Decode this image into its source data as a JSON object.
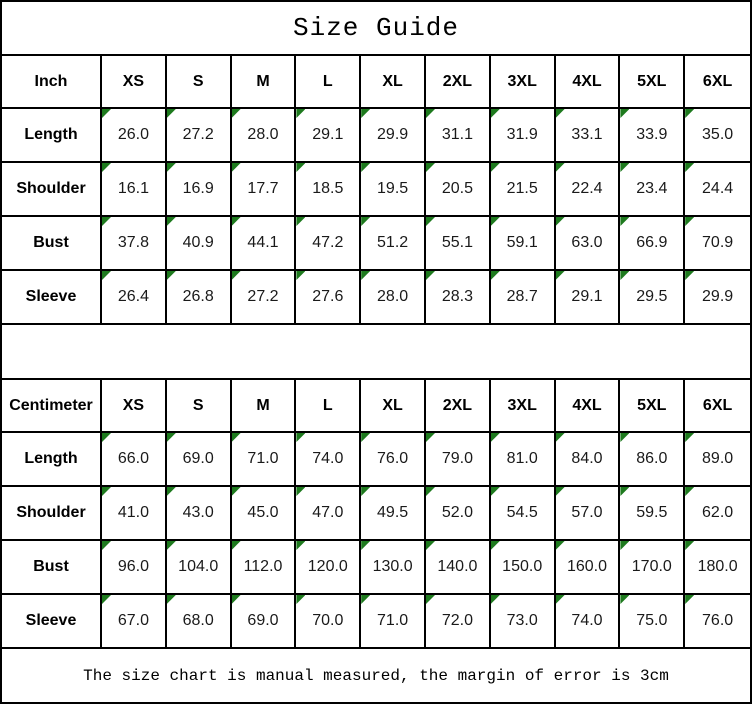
{
  "title": "Size Guide",
  "footer_note": "The size chart is manual measured, the margin of error is 3cm",
  "colors": {
    "border_black": "#000000",
    "triangle_green": "#1e7a1e",
    "text_ink": "#1a1a1a"
  },
  "icons": {
    "cell_corner_marker": "green-fold-corner-triangle"
  },
  "tables": [
    {
      "unit_label": "Inch",
      "size_headers": [
        "XS",
        "S",
        "M",
        "L",
        "XL",
        "2XL",
        "3XL",
        "4XL",
        "5XL",
        "6XL"
      ],
      "rows": [
        {
          "label": "Length",
          "values": [
            "26.0",
            "27.2",
            "28.0",
            "29.1",
            "29.9",
            "31.1",
            "31.9",
            "33.1",
            "33.9",
            "35.0"
          ]
        },
        {
          "label": "Shoulder",
          "values": [
            "16.1",
            "16.9",
            "17.7",
            "18.5",
            "19.5",
            "20.5",
            "21.5",
            "22.4",
            "23.4",
            "24.4"
          ]
        },
        {
          "label": "Bust",
          "values": [
            "37.8",
            "40.9",
            "44.1",
            "47.2",
            "51.2",
            "55.1",
            "59.1",
            "63.0",
            "66.9",
            "70.9"
          ]
        },
        {
          "label": "Sleeve",
          "values": [
            "26.4",
            "26.8",
            "27.2",
            "27.6",
            "28.0",
            "28.3",
            "28.7",
            "29.1",
            "29.5",
            "29.9"
          ]
        }
      ]
    },
    {
      "unit_label": "Centimeter",
      "size_headers": [
        "XS",
        "S",
        "M",
        "L",
        "XL",
        "2XL",
        "3XL",
        "4XL",
        "5XL",
        "6XL"
      ],
      "rows": [
        {
          "label": "Length",
          "values": [
            "66.0",
            "69.0",
            "71.0",
            "74.0",
            "76.0",
            "79.0",
            "81.0",
            "84.0",
            "86.0",
            "89.0"
          ]
        },
        {
          "label": "Shoulder",
          "values": [
            "41.0",
            "43.0",
            "45.0",
            "47.0",
            "49.5",
            "52.0",
            "54.5",
            "57.0",
            "59.5",
            "62.0"
          ]
        },
        {
          "label": "Bust",
          "values": [
            "96.0",
            "104.0",
            "112.0",
            "120.0",
            "130.0",
            "140.0",
            "150.0",
            "160.0",
            "170.0",
            "180.0"
          ]
        },
        {
          "label": "Sleeve",
          "values": [
            "67.0",
            "68.0",
            "69.0",
            "70.0",
            "71.0",
            "72.0",
            "73.0",
            "74.0",
            "75.0",
            "76.0"
          ]
        }
      ]
    }
  ]
}
